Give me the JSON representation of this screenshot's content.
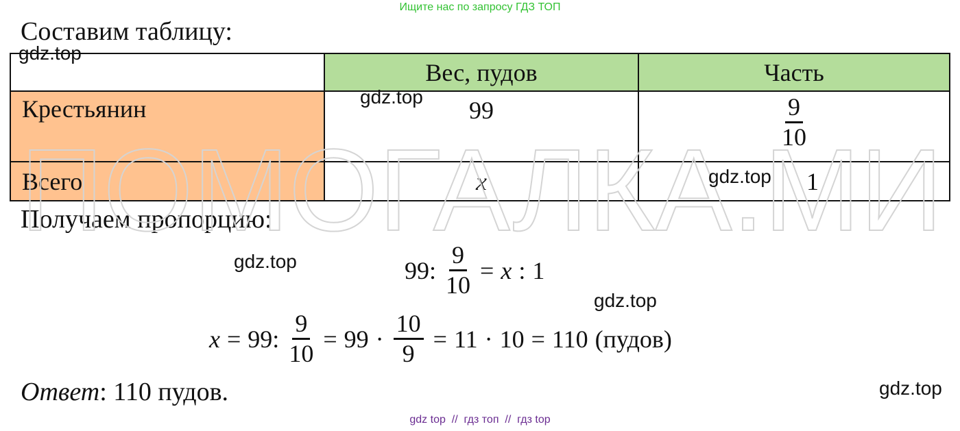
{
  "banner": "Ищите нас по запросу ГДЗ ТОП",
  "intro": "Составим таблицу:",
  "table": {
    "header": [
      "Вес, пудов",
      "Часть"
    ],
    "rows": [
      [
        "Крестьянин",
        "99",
        {
          "num": "9",
          "den": "10"
        }
      ],
      [
        "Всего",
        "x",
        "1"
      ]
    ]
  },
  "proportion_label": "Получаем пропорцию:",
  "equations": [
    [
      "99:",
      {
        "num": "9",
        "den": "10"
      },
      "=",
      "x",
      ":",
      "1"
    ],
    [
      "x",
      "=",
      "99:",
      {
        "num": "9",
        "den": "10"
      },
      "=",
      "99",
      "·",
      {
        "num": "10",
        "den": "9"
      },
      "=",
      "11",
      "·",
      "10",
      "=",
      "110",
      "(пудов)"
    ]
  ],
  "answer": {
    "label": "Ответ",
    "text": ": 110 пудов."
  },
  "watermarks": [
    "gdz.top",
    "gdz.top",
    "gdz.top",
    "gdz.top",
    "gdz.top",
    "gdz.top"
  ],
  "big_watermark": "ПОМОГАЛКА.МИ",
  "footer": "gdz top  //  гдз топ  //  гдз top"
}
